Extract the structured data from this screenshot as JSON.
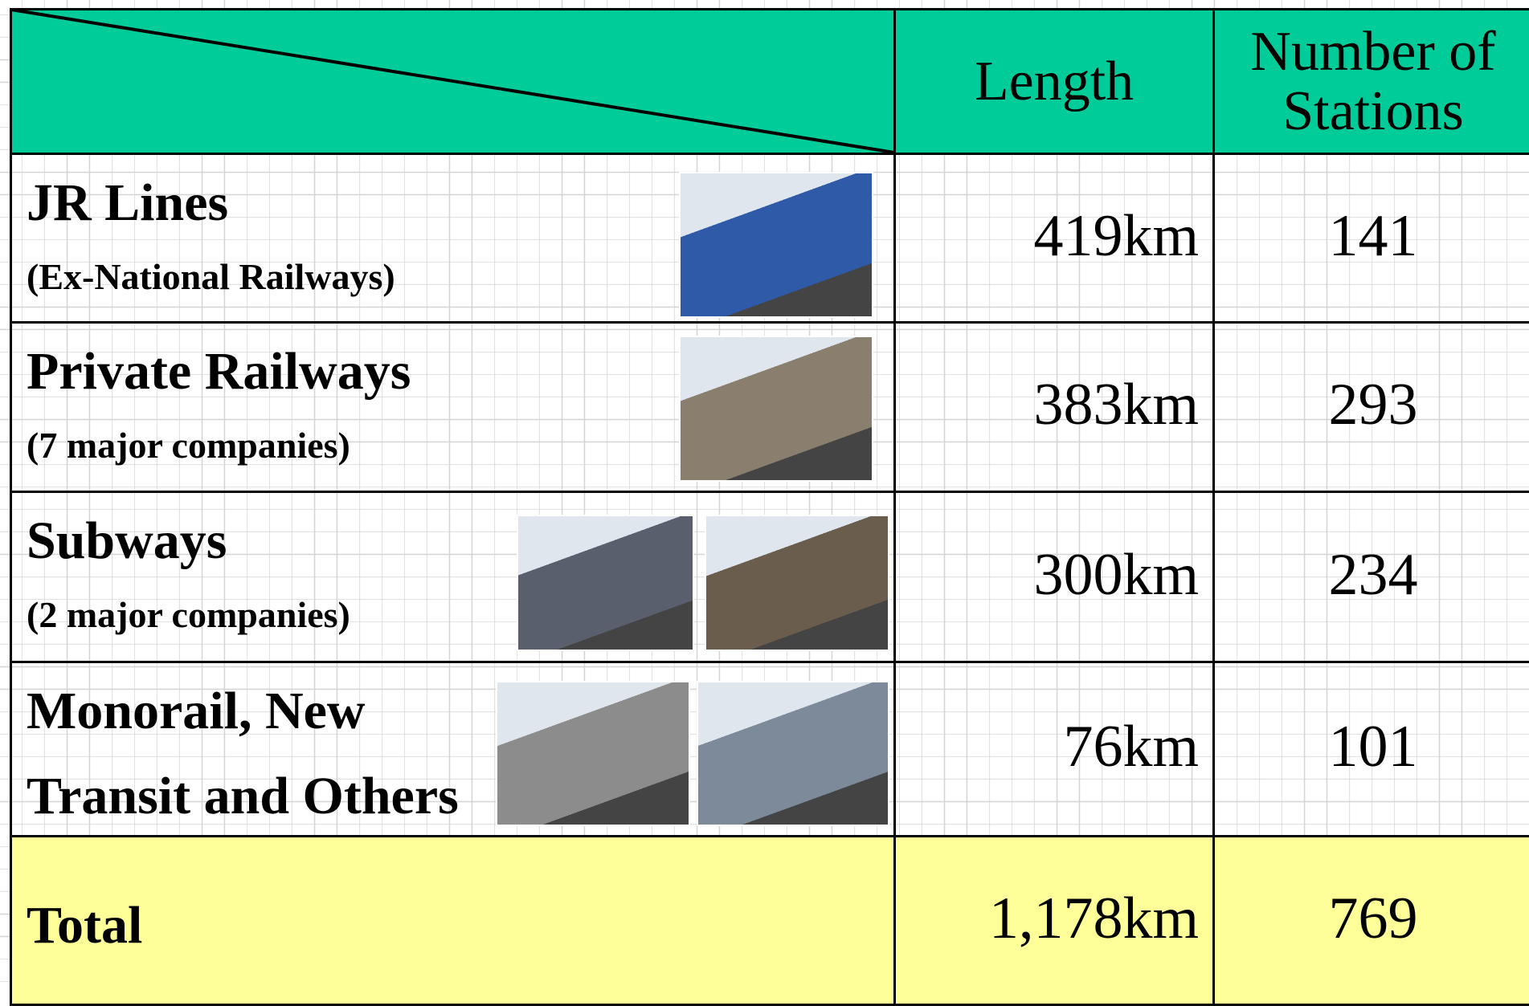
{
  "header": {
    "columns": [
      "Length",
      "Number of Stations"
    ]
  },
  "table": {
    "rows": [
      {
        "name": "JR Lines",
        "sub": "(Ex-National Railways)",
        "length": "419km",
        "stations": "141"
      },
      {
        "name": "Private Railways",
        "sub": "(7 major companies)",
        "length": "383km",
        "stations": "293"
      },
      {
        "name": "Subways",
        "sub": "(2 major companies)",
        "length": "300km",
        "stations": "234"
      },
      {
        "name": "Monorail, New Transit and Others",
        "length": "76km",
        "stations": "101"
      }
    ],
    "total": {
      "name": "Total",
      "length": "1,178km",
      "stations": "769"
    }
  }
}
